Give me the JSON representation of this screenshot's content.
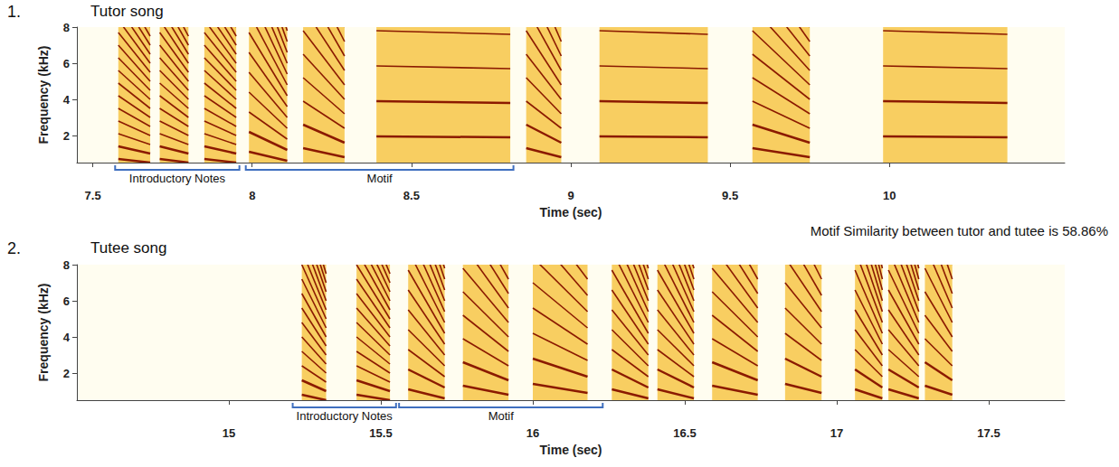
{
  "chart_data": [
    {
      "type": "spectrogram",
      "panel": "1.",
      "title": "Tutor song",
      "x_label": "Time (sec)",
      "y_label": "Frequency (kHz)",
      "xlim": [
        7.45,
        10.55
      ],
      "xticks": [
        7.5,
        8,
        8.5,
        9,
        9.5,
        10
      ],
      "ylim": [
        0.5,
        8
      ],
      "yticks": [
        2,
        4,
        6,
        8
      ],
      "color": "#8b1a00",
      "grid": false,
      "syllables": [
        {
          "start": 7.58,
          "end": 7.68,
          "f_start": 0.7,
          "f_end": 0.5
        },
        {
          "start": 7.71,
          "end": 7.8,
          "f_start": 0.7,
          "f_end": 0.5
        },
        {
          "start": 7.85,
          "end": 7.95,
          "f_start": 0.7,
          "f_end": 0.5
        },
        {
          "start": 7.99,
          "end": 8.11,
          "f_start": 1.1,
          "f_end": 0.6
        },
        {
          "start": 8.16,
          "end": 8.29,
          "f_start": 1.3,
          "f_end": 0.8
        },
        {
          "start": 8.39,
          "end": 8.81,
          "f_start": 1.95,
          "f_end": 1.9
        },
        {
          "start": 8.86,
          "end": 8.97,
          "f_start": 1.3,
          "f_end": 0.8
        },
        {
          "start": 9.09,
          "end": 9.43,
          "f_start": 1.95,
          "f_end": 1.9
        },
        {
          "start": 9.57,
          "end": 9.75,
          "f_start": 1.3,
          "f_end": 0.8
        },
        {
          "start": 9.98,
          "end": 10.37,
          "f_start": 1.95,
          "f_end": 1.9
        }
      ],
      "segments": [
        {
          "label": "Introductory Notes",
          "start": 7.57,
          "end": 7.96
        },
        {
          "label": "Motif",
          "start": 7.98,
          "end": 8.82
        }
      ],
      "annotation": "Motif Similarity between tutor and tutee is 58.86%"
    },
    {
      "type": "spectrogram",
      "panel": "2.",
      "title": "Tutee song",
      "x_label": "Time (sec)",
      "y_label": "Frequency (kHz)",
      "xlim": [
        14.5,
        17.75
      ],
      "xticks": [
        15,
        15.5,
        16,
        16.5,
        17,
        17.5
      ],
      "ylim": [
        0.5,
        8
      ],
      "yticks": [
        2,
        4,
        6,
        8
      ],
      "color": "#8b1a00",
      "grid": false,
      "syllables": [
        {
          "start": 15.24,
          "end": 15.32,
          "f_start": 0.8,
          "f_end": 0.5
        },
        {
          "start": 15.42,
          "end": 15.53,
          "f_start": 0.8,
          "f_end": 0.5
        },
        {
          "start": 15.59,
          "end": 15.71,
          "f_start": 1.1,
          "f_end": 0.6
        },
        {
          "start": 15.77,
          "end": 15.92,
          "f_start": 1.3,
          "f_end": 0.8
        },
        {
          "start": 16.0,
          "end": 16.18,
          "f_start": 1.4,
          "f_end": 0.9
        },
        {
          "start": 16.26,
          "end": 16.38,
          "f_start": 1.1,
          "f_end": 0.6
        },
        {
          "start": 16.41,
          "end": 16.53,
          "f_start": 1.1,
          "f_end": 0.6
        },
        {
          "start": 16.59,
          "end": 16.74,
          "f_start": 1.3,
          "f_end": 0.8
        },
        {
          "start": 16.83,
          "end": 16.95,
          "f_start": 1.4,
          "f_end": 0.9
        },
        {
          "start": 17.06,
          "end": 17.15,
          "f_start": 1.1,
          "f_end": 0.6
        },
        {
          "start": 17.17,
          "end": 17.27,
          "f_start": 1.1,
          "f_end": 0.6
        },
        {
          "start": 17.29,
          "end": 17.38,
          "f_start": 1.3,
          "f_end": 0.8
        }
      ],
      "segments": [
        {
          "label": "Introductory Notes",
          "start": 15.21,
          "end": 15.55
        },
        {
          "label": "Motif",
          "start": 15.56,
          "end": 16.23
        }
      ]
    }
  ]
}
